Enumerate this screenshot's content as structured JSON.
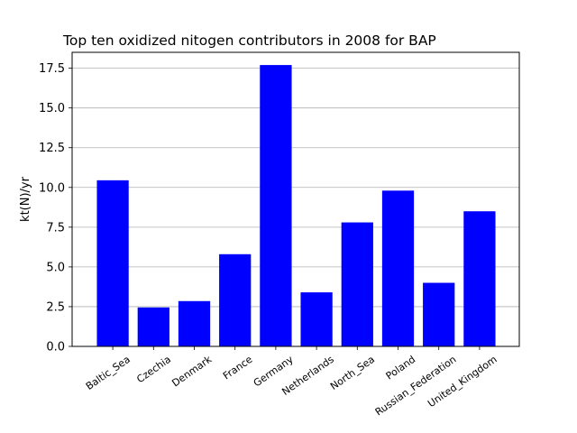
{
  "chart_data": {
    "type": "bar",
    "title": "Top ten oxidized nitogen contributors in 2008 for  BAP",
    "xlabel": "",
    "ylabel": "kt(N)/yr",
    "categories": [
      "Baltic_Sea",
      "Czechia",
      "Denmark",
      "France",
      "Germany",
      "Netherlands",
      "North_Sea",
      "Poland",
      "Russian_Federation",
      "United_Kingdom"
    ],
    "values": [
      10.45,
      2.45,
      2.85,
      5.8,
      17.7,
      3.4,
      7.8,
      9.8,
      4.0,
      8.5
    ],
    "ylim": [
      0,
      18.5
    ],
    "yticks": [
      0.0,
      2.5,
      5.0,
      7.5,
      10.0,
      12.5,
      15.0,
      17.5
    ],
    "ytick_labels": [
      "0.0",
      "2.5",
      "5.0",
      "7.5",
      "10.0",
      "12.5",
      "15.0",
      "17.5"
    ],
    "bar_color": "#0000ff",
    "grid": "y-axis horizontal lines",
    "legend": "none"
  }
}
